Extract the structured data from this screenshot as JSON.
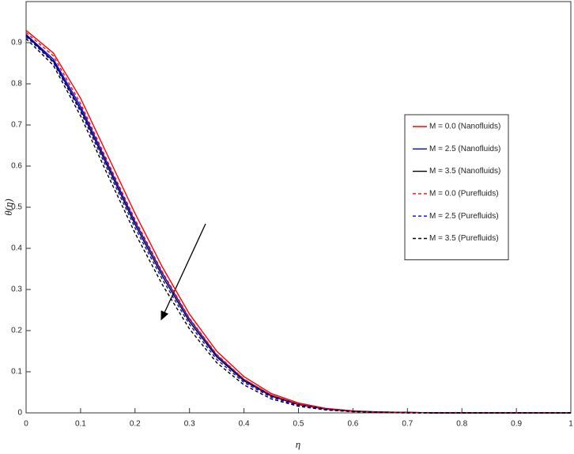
{
  "chart_data": {
    "type": "line",
    "xlabel": "η",
    "ylabel": "θ(η)",
    "x": [
      0,
      0.05,
      0.1,
      0.15,
      0.2,
      0.25,
      0.3,
      0.35,
      0.4,
      0.45,
      0.5,
      0.55,
      0.6,
      0.65,
      0.7,
      0.75,
      0.8,
      0.85,
      0.9,
      0.95,
      1
    ],
    "series": [
      {
        "name": "M = 0.0 (Nanofluids)",
        "color": "#ff0000",
        "dashed": false,
        "values": [
          0.93,
          0.875,
          0.765,
          0.625,
          0.485,
          0.355,
          0.24,
          0.15,
          0.088,
          0.047,
          0.024,
          0.011,
          0.005,
          0.002,
          0.001,
          0,
          0,
          0,
          0,
          0,
          0
        ]
      },
      {
        "name": "M = 2.5 (Nanofluids)",
        "color": "#0000ff",
        "dashed": false,
        "values": [
          0.92,
          0.86,
          0.745,
          0.605,
          0.465,
          0.34,
          0.228,
          0.14,
          0.081,
          0.043,
          0.021,
          0.01,
          0.004,
          0.002,
          0.001,
          0,
          0,
          0,
          0,
          0,
          0
        ]
      },
      {
        "name": "M = 3.5 (Nanofluids)",
        "color": "#000000",
        "dashed": false,
        "values": [
          0.918,
          0.855,
          0.738,
          0.598,
          0.458,
          0.333,
          0.222,
          0.136,
          0.078,
          0.041,
          0.02,
          0.009,
          0.004,
          0.002,
          0.001,
          0,
          0,
          0,
          0,
          0,
          0
        ]
      },
      {
        "name": "M = 0.0 (Purefluids)",
        "color": "#ff0000",
        "dashed": true,
        "values": [
          0.925,
          0.868,
          0.752,
          0.61,
          0.47,
          0.343,
          0.23,
          0.142,
          0.082,
          0.043,
          0.021,
          0.01,
          0.004,
          0.002,
          0.001,
          0,
          0,
          0,
          0,
          0,
          0
        ]
      },
      {
        "name": "M = 2.5 (Purefluids)",
        "color": "#0000ff",
        "dashed": true,
        "values": [
          0.915,
          0.852,
          0.732,
          0.59,
          0.45,
          0.325,
          0.215,
          0.13,
          0.074,
          0.038,
          0.018,
          0.008,
          0.003,
          0.001,
          0,
          0,
          0,
          0,
          0,
          0,
          0
        ]
      },
      {
        "name": "M = 3.5 (Purefluids)",
        "color": "#000000",
        "dashed": true,
        "values": [
          0.91,
          0.845,
          0.722,
          0.578,
          0.437,
          0.312,
          0.204,
          0.122,
          0.068,
          0.034,
          0.016,
          0.007,
          0.003,
          0.001,
          0,
          0,
          0,
          0,
          0,
          0,
          0
        ]
      }
    ],
    "xlim": [
      0,
      1
    ],
    "xticks": [
      0,
      0.1,
      0.2,
      0.3,
      0.4,
      0.5,
      0.6,
      0.7,
      0.8,
      0.9,
      1
    ],
    "ylim": [
      0,
      1
    ],
    "yticks": [
      0,
      0.1,
      0.2,
      0.3,
      0.4,
      0.5,
      0.6,
      0.7,
      0.8,
      0.9
    ],
    "legend": "right"
  }
}
